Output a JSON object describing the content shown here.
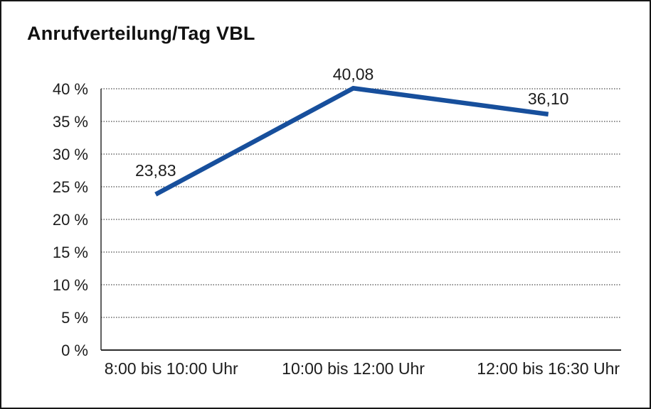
{
  "chart_data": {
    "type": "line",
    "title": "Anrufverteilung/Tag VBL",
    "categories": [
      "8:00 bis 10:00 Uhr",
      "10:00 bis 12:00 Uhr",
      "12:00 bis 16:30 Uhr"
    ],
    "values": [
      23.83,
      40.08,
      36.1
    ],
    "value_labels": [
      "23,83",
      "40,08",
      "36,10"
    ],
    "xlabel": "",
    "ylabel": "",
    "ylim": [
      0,
      40
    ],
    "ytick_step": 5,
    "ytick_suffix": " %",
    "grid": "horizontal-dotted",
    "legend": "none",
    "colors": {
      "line": "#174f9c",
      "grid": "#4a4a4a",
      "axis": "#2b2b2b",
      "text": "#1c1c1c",
      "frame_border": "#161616",
      "background": "#ffffff"
    }
  }
}
